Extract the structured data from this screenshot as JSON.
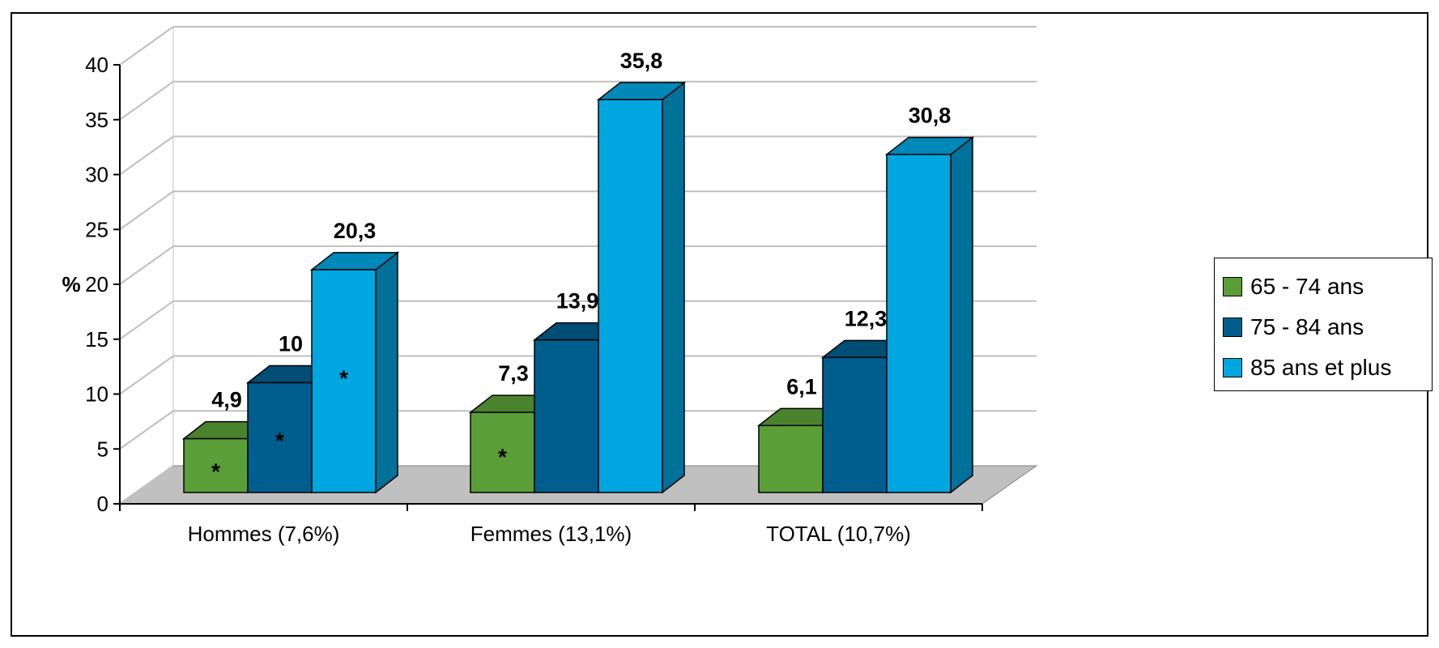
{
  "chart_data": {
    "type": "bar",
    "title": "",
    "xlabel": "",
    "ylabel": "%",
    "ylim": [
      0,
      40
    ],
    "yticks": [
      "0",
      "5",
      "10",
      "15",
      "20",
      "25",
      "30",
      "35",
      "40"
    ],
    "grid": true,
    "legend_position": "right",
    "categories": [
      "Hommes (7,6%)",
      "Femmes (13,1%)",
      "TOTAL (10,7%)"
    ],
    "series": [
      {
        "name": "65 - 74 ans",
        "color": "#5a9e38",
        "values": [
          4.9,
          7.3,
          6.1
        ],
        "labels": [
          "4,9",
          "7,3",
          "6,1"
        ],
        "markers": [
          "*",
          "*",
          ""
        ]
      },
      {
        "name": "75 - 84 ans",
        "color": "#005e8f",
        "values": [
          10,
          13.9,
          12.3
        ],
        "labels": [
          "10",
          "13,9",
          "12,3"
        ],
        "markers": [
          "*",
          "",
          ""
        ]
      },
      {
        "name": "85 ans et plus",
        "color": "#00a6e0",
        "values": [
          20.3,
          35.8,
          30.8
        ],
        "labels": [
          "20,3",
          "35,8",
          "30,8"
        ],
        "markers": [
          "*",
          "",
          ""
        ]
      }
    ]
  }
}
